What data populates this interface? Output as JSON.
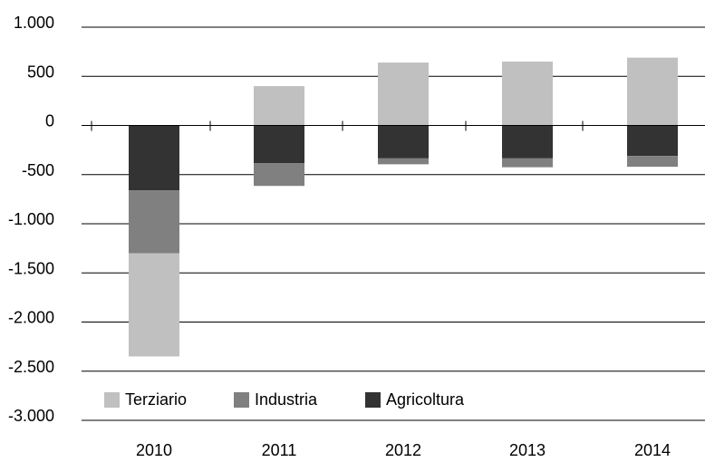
{
  "chart_data": {
    "type": "bar",
    "stacked": true,
    "categories": [
      "2010",
      "2011",
      "2012",
      "2013",
      "2014"
    ],
    "series": [
      {
        "name": "Terziario",
        "color": "#c0c0c0",
        "values": [
          -1050,
          400,
          640,
          650,
          690
        ]
      },
      {
        "name": "Industria",
        "color": "#808080",
        "values": [
          -640,
          -230,
          -60,
          -90,
          -110
        ]
      },
      {
        "name": "Agricoltura",
        "color": "#333333",
        "values": [
          -660,
          -385,
          -335,
          -335,
          -310
        ]
      }
    ],
    "stack_order": [
      "Agricoltura",
      "Industria",
      "Terziario"
    ],
    "y_ticks": [
      {
        "value": 1000,
        "label": "1.000"
      },
      {
        "value": 500,
        "label": "500"
      },
      {
        "value": 0,
        "label": "0"
      },
      {
        "value": -500,
        "label": "-500"
      },
      {
        "value": -1000,
        "label": "-1.000"
      },
      {
        "value": -1500,
        "label": "-1.500"
      },
      {
        "value": -2000,
        "label": "-2.000"
      },
      {
        "value": -2500,
        "label": "-2.500"
      },
      {
        "value": -3000,
        "label": "-3.000"
      }
    ],
    "ylim": [
      -3000,
      1000
    ],
    "grid": true,
    "legend_position": "bottom-left",
    "legend_order": [
      "Terziario",
      "Industria",
      "Agricoltura"
    ],
    "title": "",
    "xlabel": "",
    "ylabel": ""
  }
}
